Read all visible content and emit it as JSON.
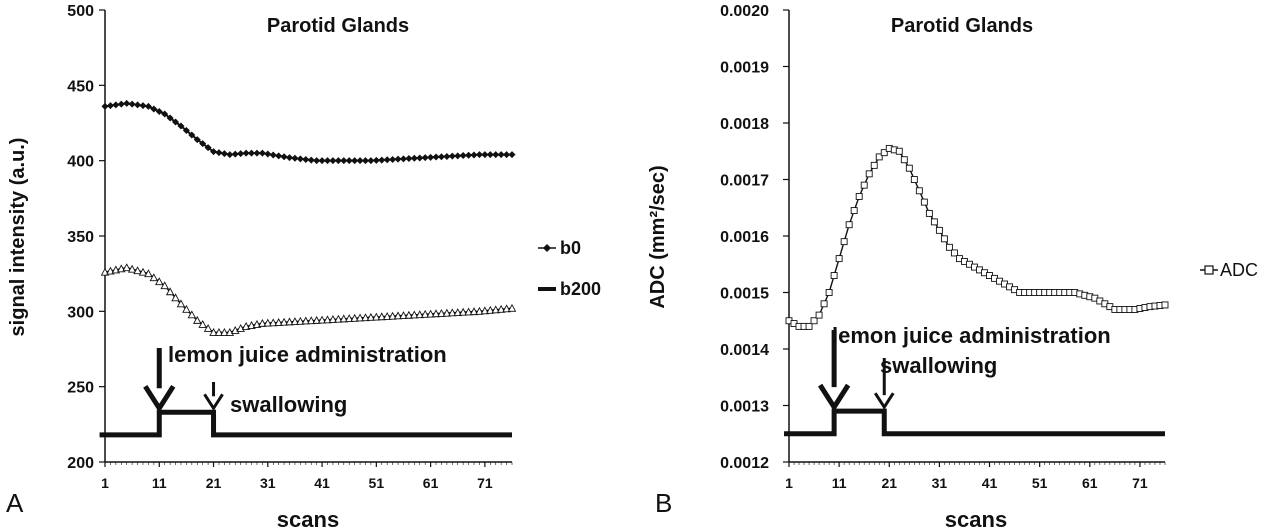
{
  "chart_data": [
    {
      "type": "line",
      "panel_label": "A",
      "title": "Parotid Glands",
      "xlabel": "scans",
      "ylabel": "signal intensity (a.u.)",
      "ylim": [
        200,
        500
      ],
      "xlim": [
        1,
        76
      ],
      "yticks": [
        "200",
        "250",
        "300",
        "350",
        "400",
        "450",
        "500"
      ],
      "xticks": [
        "1",
        "11",
        "21",
        "31",
        "41",
        "51",
        "61",
        "71"
      ],
      "legend_position": "right",
      "series": [
        {
          "name": "b0",
          "marker": "diamond",
          "points": [
            [
              1,
              436
            ],
            [
              5,
              438
            ],
            [
              9,
              436
            ],
            [
              12,
              431
            ],
            [
              15,
              423
            ],
            [
              18,
              414
            ],
            [
              21,
              406
            ],
            [
              24,
              404
            ],
            [
              27,
              405
            ],
            [
              30,
              405
            ],
            [
              35,
              402
            ],
            [
              40,
              400
            ],
            [
              45,
              400
            ],
            [
              50,
              400
            ],
            [
              55,
              401
            ],
            [
              60,
              402
            ],
            [
              65,
              403
            ],
            [
              70,
              404
            ],
            [
              76,
              404
            ]
          ]
        },
        {
          "name": "b200",
          "marker": "triangle",
          "points": [
            [
              1,
              326
            ],
            [
              5,
              329
            ],
            [
              9,
              325
            ],
            [
              12,
              317
            ],
            [
              15,
              305
            ],
            [
              18,
              294
            ],
            [
              21,
              286
            ],
            [
              24,
              286
            ],
            [
              27,
              290
            ],
            [
              30,
              292
            ],
            [
              35,
              293
            ],
            [
              40,
              294
            ],
            [
              45,
              295
            ],
            [
              50,
              296
            ],
            [
              55,
              297
            ],
            [
              60,
              298
            ],
            [
              65,
              299
            ],
            [
              70,
              300
            ],
            [
              76,
              302
            ]
          ]
        }
      ],
      "stimulus": {
        "points": [
          [
            0,
            218
          ],
          [
            11,
            218
          ],
          [
            11,
            233
          ],
          [
            21,
            233
          ],
          [
            21,
            218
          ],
          [
            76,
            218
          ]
        ]
      },
      "annotations": [
        {
          "text": "lemon juice administration",
          "x": 11
        },
        {
          "text": "swallowing",
          "x": 21
        }
      ]
    },
    {
      "type": "line",
      "panel_label": "B",
      "title": "Parotid Glands",
      "xlabel": "scans",
      "ylabel": "ADC (mm²/sec)",
      "ylim": [
        0.0012,
        0.002
      ],
      "xlim": [
        1,
        76
      ],
      "yticks": [
        "0.0012",
        "0.0013",
        "0.0014",
        "0.0015",
        "0.0016",
        "0.0017",
        "0.0018",
        "0.0019",
        "0.0020"
      ],
      "xticks": [
        "1",
        "11",
        "21",
        "31",
        "41",
        "51",
        "61",
        "71"
      ],
      "legend_position": "right",
      "series": [
        {
          "name": "ADC",
          "marker": "square",
          "points": [
            [
              1,
              0.00145
            ],
            [
              3,
              0.00144
            ],
            [
              5,
              0.00144
            ],
            [
              7,
              0.00146
            ],
            [
              9,
              0.0015
            ],
            [
              11,
              0.00156
            ],
            [
              13,
              0.00162
            ],
            [
              15,
              0.00167
            ],
            [
              17,
              0.00171
            ],
            [
              19,
              0.00174
            ],
            [
              21,
              0.001755
            ],
            [
              23,
              0.00175
            ],
            [
              25,
              0.00172
            ],
            [
              27,
              0.00168
            ],
            [
              29,
              0.00164
            ],
            [
              31,
              0.00161
            ],
            [
              33,
              0.00158
            ],
            [
              35,
              0.00156
            ],
            [
              37,
              0.00155
            ],
            [
              39,
              0.00154
            ],
            [
              41,
              0.00153
            ],
            [
              43,
              0.00152
            ],
            [
              45,
              0.00151
            ],
            [
              47,
              0.0015
            ],
            [
              50,
              0.0015
            ],
            [
              54,
              0.0015
            ],
            [
              58,
              0.0015
            ],
            [
              62,
              0.00149
            ],
            [
              66,
              0.00147
            ],
            [
              70,
              0.00147
            ],
            [
              73,
              0.001475
            ],
            [
              76,
              0.001478
            ]
          ]
        }
      ],
      "stimulus": {
        "points": [
          [
            0,
            0.00125
          ],
          [
            10,
            0.00125
          ],
          [
            10,
            0.00129
          ],
          [
            20,
            0.00129
          ],
          [
            20,
            0.00125
          ],
          [
            76,
            0.00125
          ]
        ]
      },
      "annotations": [
        {
          "text": "lemon juice administration",
          "x": 10
        },
        {
          "text": "swallowing",
          "x": 20
        }
      ]
    }
  ]
}
